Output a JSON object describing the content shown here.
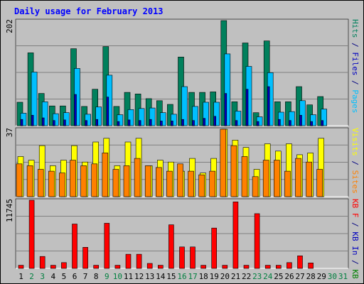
{
  "chart_data": {
    "type": "bar",
    "title": "Daily usage for February 2013",
    "days": [
      "1",
      "2",
      "3",
      "4",
      "5",
      "6",
      "7",
      "8",
      "9",
      "10",
      "11",
      "12",
      "13",
      "14",
      "15",
      "16",
      "17",
      "18",
      "19",
      "20",
      "21",
      "22",
      "23",
      "24",
      "25",
      "26",
      "27",
      "28",
      "29",
      "30",
      "31"
    ],
    "weekend_days": [
      "2",
      "3",
      "9",
      "10",
      "16",
      "17",
      "23",
      "24",
      "30",
      "31"
    ],
    "day_color": "#000000",
    "weekend_color": "#007f3f",
    "panels": [
      {
        "max_label": "202",
        "ylim": [
          0,
          202
        ],
        "side_label": [
          {
            "text": "Hits",
            "color": "#00805c"
          },
          {
            "text": " / ",
            "color": "#000080"
          },
          {
            "text": "Files",
            "color": "#0000c0"
          },
          {
            "text": " / ",
            "color": "#000080"
          },
          {
            "text": "Pages",
            "color": "#00bfff"
          }
        ],
        "series": [
          {
            "name": "Hits",
            "color": "#00805c",
            "values": [
              45,
              140,
              62,
              38,
              38,
              148,
              37,
              70,
              152,
              37,
              64,
              61,
              52,
              48,
              41,
              132,
              64,
              64,
              65,
              202,
              46,
              159,
              25,
              163,
              46,
              46,
              75,
              40,
              56,
              0,
              0
            ]
          },
          {
            "name": "Files",
            "color": "#00bfff",
            "values": [
              24,
              103,
              46,
              23,
              25,
              110,
              22,
              36,
              97,
              21,
              31,
              33,
              34,
              25,
              22,
              75,
              37,
              45,
              45,
              138,
              28,
              114,
              17,
              102,
              26,
              27,
              48,
              21,
              32,
              0,
              0
            ]
          },
          {
            "name": "Pages",
            "color": "#0000c0",
            "values": [
              12,
              20,
              15,
              10,
              11,
              60,
              10,
              12,
              55,
              8,
              11,
              10,
              12,
              9,
              9,
              12,
              10,
              14,
              18,
              62,
              10,
              70,
              8,
              75,
              12,
              10,
              20,
              8,
              10,
              0,
              0
            ]
          }
        ]
      },
      {
        "max_label": "37",
        "ylim": [
          0,
          37
        ],
        "side_label": [
          {
            "text": "Visits",
            "color": "#ffff00"
          },
          {
            "text": " / ",
            "color": "#000080"
          },
          {
            "text": "Sites",
            "color": "#ff8000"
          }
        ],
        "series": [
          {
            "name": "Visits",
            "color": "#ffff00",
            "values": [
              22,
              20,
              28,
              17,
              20,
              28,
              19,
              30,
              32,
              17,
              30,
              32,
              17,
              20,
              19,
              14,
              21,
              13,
              21,
              37,
              31,
              27,
              15,
              29,
              25,
              29,
              23,
              24,
              32,
              0,
              0
            ]
          },
          {
            "name": "Sites",
            "color": "#ff8000",
            "values": [
              18,
              17,
              15,
              14,
              13,
              20,
              17,
              18,
              24,
              15,
              17,
              21,
              17,
              16,
              14,
              18,
              14,
              12,
              14,
              37,
              28,
              22,
              11,
              20,
              20,
              14,
              21,
              19,
              15,
              0,
              0
            ]
          }
        ]
      },
      {
        "max_label": "11745",
        "ylim": [
          0,
          11745
        ],
        "side_label": [
          {
            "text": "KB F",
            "color": "#ff0000"
          },
          {
            "text": " / ",
            "color": "#000080"
          },
          {
            "text": "KB In",
            "color": "#0000c0"
          },
          {
            "text": " / ",
            "color": "#000080"
          },
          {
            "text": "KB Out",
            "color": "#008000"
          }
        ],
        "series": [
          {
            "name": "KB F",
            "color": "#ff0000",
            "values": [
              540,
              11745,
              2050,
              540,
              1000,
              7650,
              3630,
              540,
              7780,
              540,
              2430,
              2430,
              860,
              540,
              7510,
              3700,
              3700,
              540,
              6950,
              540,
              11465,
              540,
              9430,
              540,
              540,
              1000,
              2160,
              940,
              0,
              0,
              0
            ]
          }
        ]
      }
    ]
  },
  "colors": {
    "background": "#c0c0c0",
    "frame": "#ffffff",
    "gridline": "#808080",
    "outline": "#000000"
  }
}
